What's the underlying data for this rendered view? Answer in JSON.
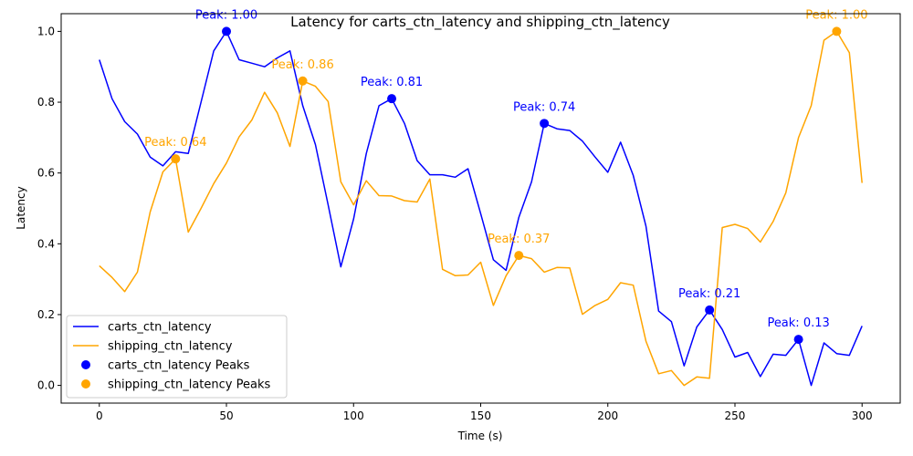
{
  "chart_data": {
    "type": "line",
    "title": "Latency for carts_ctn_latency and shipping_ctn_latency",
    "xlabel": "Time (s)",
    "ylabel": "Latency",
    "xlim": [
      -15,
      315
    ],
    "ylim": [
      -0.05,
      1.05
    ],
    "xticks": [
      0,
      50,
      100,
      150,
      200,
      250,
      300
    ],
    "yticks": [
      0.0,
      0.2,
      0.4,
      0.6,
      0.8,
      1.0
    ],
    "xtick_labels": [
      "0",
      "50",
      "100",
      "150",
      "200",
      "250",
      "300"
    ],
    "ytick_labels": [
      "0.0",
      "0.2",
      "0.4",
      "0.6",
      "0.8",
      "1.0"
    ],
    "grid": false,
    "legend_position": "bottom-left",
    "x": [
      0,
      5,
      10,
      15,
      20,
      25,
      30,
      35,
      40,
      45,
      50,
      55,
      60,
      65,
      70,
      75,
      80,
      85,
      90,
      95,
      100,
      105,
      110,
      115,
      120,
      125,
      130,
      135,
      140,
      145,
      150,
      155,
      160,
      165,
      170,
      175,
      180,
      185,
      190,
      195,
      200,
      205,
      210,
      215,
      220,
      225,
      230,
      235,
      240,
      245,
      250,
      255,
      260,
      265,
      270,
      275,
      280,
      285,
      290,
      295,
      300
    ],
    "series": [
      {
        "name": "carts_ctn_latency",
        "color": "#0000ff",
        "values": [
          0.92,
          0.81,
          0.745,
          0.71,
          0.645,
          0.62,
          0.66,
          0.655,
          0.8,
          0.945,
          1.0,
          0.92,
          0.91,
          0.9,
          0.925,
          0.945,
          0.79,
          0.68,
          0.51,
          0.335,
          0.47,
          0.655,
          0.79,
          0.81,
          0.74,
          0.635,
          0.595,
          0.595,
          0.588,
          0.612,
          0.485,
          0.355,
          0.325,
          0.475,
          0.575,
          0.74,
          0.725,
          0.72,
          0.69,
          0.645,
          0.602,
          0.687,
          0.593,
          0.45,
          0.21,
          0.18,
          0.055,
          0.165,
          0.213,
          0.158,
          0.08,
          0.093,
          0.025,
          0.088,
          0.085,
          0.13,
          0.0,
          0.12,
          0.09,
          0.085,
          0.168
        ]
      },
      {
        "name": "shipping_ctn_latency",
        "color": "#ffa500",
        "values": [
          0.338,
          0.305,
          0.265,
          0.32,
          0.49,
          0.603,
          0.64,
          0.433,
          0.5,
          0.57,
          0.628,
          0.702,
          0.75,
          0.828,
          0.77,
          0.675,
          0.86,
          0.845,
          0.802,
          0.575,
          0.51,
          0.578,
          0.536,
          0.535,
          0.522,
          0.518,
          0.583,
          0.328,
          0.31,
          0.312,
          0.348,
          0.226,
          0.31,
          0.367,
          0.358,
          0.32,
          0.333,
          0.332,
          0.201,
          0.226,
          0.243,
          0.29,
          0.283,
          0.125,
          0.033,
          0.042,
          0.0,
          0.024,
          0.02,
          0.446,
          0.455,
          0.443,
          0.405,
          0.463,
          0.544,
          0.7,
          0.79,
          0.975,
          1.0,
          0.94,
          0.572
        ]
      }
    ],
    "peaks": [
      {
        "series": "carts_ctn_latency",
        "legend_label": "carts_ctn_latency Peaks",
        "color": "#0000ff",
        "points": [
          {
            "x": 50,
            "y": 1.0,
            "label": "Peak: 1.00"
          },
          {
            "x": 115,
            "y": 0.81,
            "label": "Peak: 0.81"
          },
          {
            "x": 175,
            "y": 0.74,
            "label": "Peak: 0.74"
          },
          {
            "x": 240,
            "y": 0.213,
            "label": "Peak: 0.21"
          },
          {
            "x": 275,
            "y": 0.13,
            "label": "Peak: 0.13"
          }
        ]
      },
      {
        "series": "shipping_ctn_latency",
        "legend_label": "shipping_ctn_latency Peaks",
        "color": "#ffa500",
        "points": [
          {
            "x": 30,
            "y": 0.64,
            "label": "Peak: 0.64"
          },
          {
            "x": 80,
            "y": 0.86,
            "label": "Peak: 0.86"
          },
          {
            "x": 165,
            "y": 0.367,
            "label": "Peak: 0.37"
          },
          {
            "x": 290,
            "y": 1.0,
            "label": "Peak: 1.00"
          }
        ]
      }
    ]
  }
}
